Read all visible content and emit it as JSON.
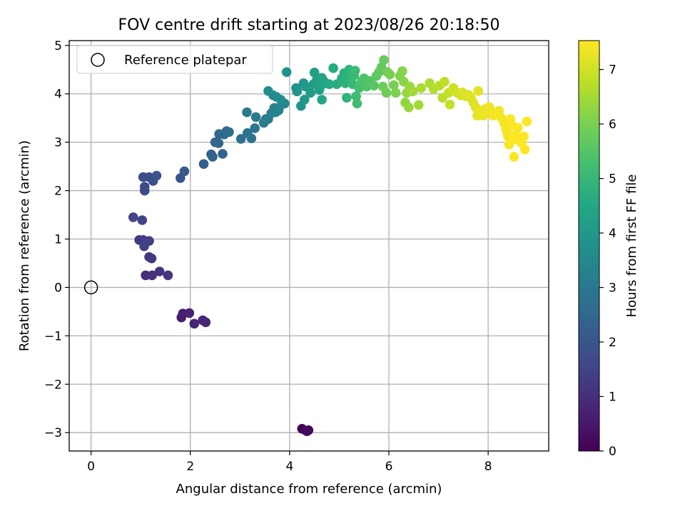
{
  "chart_data": {
    "type": "scatter",
    "title": "FOV centre drift starting at 2023/08/26 20:18:50",
    "xlabel": "Angular distance from reference (arcmin)",
    "ylabel": "Rotation from reference (arcmin)",
    "xlim": [
      -0.44,
      9.22
    ],
    "ylim": [
      -3.38,
      5.1
    ],
    "xticks": [
      0,
      2,
      4,
      6,
      8
    ],
    "xtick_labels": [
      "0",
      "2",
      "4",
      "6",
      "8"
    ],
    "yticks": [
      -3,
      -2,
      -1,
      0,
      1,
      2,
      3,
      4,
      5
    ],
    "ytick_labels": [
      "−3",
      "−2",
      "−1",
      "0",
      "1",
      "2",
      "3",
      "4",
      "5"
    ],
    "grid": true,
    "legend": {
      "placement": "top-left",
      "entries": [
        "Reference platepar"
      ]
    },
    "reference_point": {
      "x": 0,
      "y": 0,
      "marker": "open-circle",
      "label": "Reference platepar"
    },
    "colorbar": {
      "label": "Hours from first FF file",
      "colormap": "viridis",
      "range": [
        0,
        7.53
      ],
      "ticks": [
        0,
        1,
        2,
        3,
        4,
        5,
        6,
        7
      ],
      "tick_labels": [
        "0",
        "1",
        "2",
        "3",
        "4",
        "5",
        "6",
        "7"
      ]
    },
    "series": [
      {
        "points": [
          {
            "x": 4.25,
            "y": -2.92,
            "h": 0.05
          },
          {
            "x": 4.33,
            "y": -2.96,
            "h": 0.1
          },
          {
            "x": 4.38,
            "y": -2.95,
            "h": 0.15
          },
          {
            "x": 4.35,
            "y": -2.97,
            "h": 0.2
          },
          {
            "x": 1.82,
            "y": -0.62,
            "h": 0.6
          },
          {
            "x": 1.85,
            "y": -0.54,
            "h": 0.65
          },
          {
            "x": 1.98,
            "y": -0.53,
            "h": 0.7
          },
          {
            "x": 2.08,
            "y": -0.75,
            "h": 0.75
          },
          {
            "x": 2.25,
            "y": -0.68,
            "h": 0.8
          },
          {
            "x": 2.31,
            "y": -0.72,
            "h": 0.85
          },
          {
            "x": 1.1,
            "y": 0.25,
            "h": 1.0
          },
          {
            "x": 1.23,
            "y": 0.25,
            "h": 1.05
          },
          {
            "x": 1.38,
            "y": 0.33,
            "h": 1.1
          },
          {
            "x": 1.55,
            "y": 0.25,
            "h": 1.15
          },
          {
            "x": 1.17,
            "y": 0.63,
            "h": 1.2
          },
          {
            "x": 1.22,
            "y": 0.6,
            "h": 1.25
          },
          {
            "x": 0.97,
            "y": 0.98,
            "h": 1.3
          },
          {
            "x": 1.05,
            "y": 0.98,
            "h": 1.35
          },
          {
            "x": 1.17,
            "y": 0.96,
            "h": 1.4
          },
          {
            "x": 1.07,
            "y": 0.85,
            "h": 1.45
          },
          {
            "x": 0.85,
            "y": 1.45,
            "h": 1.5
          },
          {
            "x": 1.03,
            "y": 1.39,
            "h": 1.55
          },
          {
            "x": 1.08,
            "y": 2.0,
            "h": 1.65
          },
          {
            "x": 1.08,
            "y": 2.08,
            "h": 1.7
          },
          {
            "x": 1.05,
            "y": 2.28,
            "h": 1.75
          },
          {
            "x": 1.17,
            "y": 2.28,
            "h": 1.8
          },
          {
            "x": 1.25,
            "y": 2.2,
            "h": 1.85
          },
          {
            "x": 1.32,
            "y": 2.31,
            "h": 1.9
          },
          {
            "x": 1.8,
            "y": 2.26,
            "h": 2.0
          },
          {
            "x": 1.88,
            "y": 2.4,
            "h": 2.1
          },
          {
            "x": 2.27,
            "y": 2.55,
            "h": 2.2
          },
          {
            "x": 2.42,
            "y": 2.75,
            "h": 2.3
          },
          {
            "x": 2.45,
            "y": 2.7,
            "h": 2.35
          },
          {
            "x": 2.65,
            "y": 2.76,
            "h": 2.4
          },
          {
            "x": 2.5,
            "y": 3.0,
            "h": 2.45
          },
          {
            "x": 2.57,
            "y": 2.98,
            "h": 2.5
          },
          {
            "x": 2.58,
            "y": 3.17,
            "h": 2.55
          },
          {
            "x": 2.68,
            "y": 3.16,
            "h": 2.6
          },
          {
            "x": 2.73,
            "y": 3.23,
            "h": 2.65
          },
          {
            "x": 2.78,
            "y": 3.21,
            "h": 2.7
          },
          {
            "x": 3.02,
            "y": 3.07,
            "h": 2.8
          },
          {
            "x": 3.15,
            "y": 3.19,
            "h": 2.85
          },
          {
            "x": 3.23,
            "y": 3.08,
            "h": 2.9
          },
          {
            "x": 3.3,
            "y": 3.29,
            "h": 2.95
          },
          {
            "x": 3.14,
            "y": 3.62,
            "h": 3.0
          },
          {
            "x": 3.32,
            "y": 3.52,
            "h": 3.05
          },
          {
            "x": 3.48,
            "y": 3.4,
            "h": 3.1
          },
          {
            "x": 3.52,
            "y": 3.48,
            "h": 3.15
          },
          {
            "x": 3.57,
            "y": 3.48,
            "h": 3.2
          },
          {
            "x": 3.63,
            "y": 3.6,
            "h": 3.25
          },
          {
            "x": 3.69,
            "y": 3.71,
            "h": 3.3
          },
          {
            "x": 3.72,
            "y": 3.62,
            "h": 3.35
          },
          {
            "x": 3.78,
            "y": 3.66,
            "h": 3.4
          },
          {
            "x": 3.84,
            "y": 3.78,
            "h": 3.45
          },
          {
            "x": 3.9,
            "y": 3.8,
            "h": 3.5
          },
          {
            "x": 3.67,
            "y": 3.97,
            "h": 3.55
          },
          {
            "x": 3.73,
            "y": 3.94,
            "h": 3.6
          },
          {
            "x": 3.82,
            "y": 3.88,
            "h": 3.65
          },
          {
            "x": 3.57,
            "y": 4.06,
            "h": 3.7
          },
          {
            "x": 3.94,
            "y": 4.45,
            "h": 3.75
          },
          {
            "x": 4.13,
            "y": 4.12,
            "h": 3.8
          },
          {
            "x": 4.15,
            "y": 4.05,
            "h": 3.85
          },
          {
            "x": 4.23,
            "y": 3.75,
            "h": 3.9
          },
          {
            "x": 4.3,
            "y": 3.88,
            "h": 3.95
          },
          {
            "x": 4.28,
            "y": 4.22,
            "h": 4.0
          },
          {
            "x": 4.32,
            "y": 4.15,
            "h": 4.05
          },
          {
            "x": 4.42,
            "y": 4.02,
            "h": 4.1
          },
          {
            "x": 4.48,
            "y": 4.2,
            "h": 4.15
          },
          {
            "x": 4.5,
            "y": 4.44,
            "h": 4.2
          },
          {
            "x": 4.55,
            "y": 4.3,
            "h": 4.25
          },
          {
            "x": 4.6,
            "y": 4.08,
            "h": 4.3
          },
          {
            "x": 4.65,
            "y": 4.33,
            "h": 4.35
          },
          {
            "x": 4.67,
            "y": 4.2,
            "h": 4.4
          },
          {
            "x": 4.7,
            "y": 4.25,
            "h": 4.45
          },
          {
            "x": 4.65,
            "y": 3.88,
            "h": 4.5
          },
          {
            "x": 4.8,
            "y": 4.2,
            "h": 4.55
          },
          {
            "x": 4.88,
            "y": 4.53,
            "h": 4.6
          },
          {
            "x": 4.95,
            "y": 4.2,
            "h": 4.65
          },
          {
            "x": 5.05,
            "y": 4.32,
            "h": 4.7
          },
          {
            "x": 5.1,
            "y": 4.43,
            "h": 4.75
          },
          {
            "x": 5.12,
            "y": 4.22,
            "h": 4.8
          },
          {
            "x": 5.15,
            "y": 3.92,
            "h": 4.85
          },
          {
            "x": 5.2,
            "y": 4.5,
            "h": 4.9
          },
          {
            "x": 5.23,
            "y": 4.33,
            "h": 4.95
          },
          {
            "x": 5.27,
            "y": 4.2,
            "h": 5.0
          },
          {
            "x": 5.3,
            "y": 4.38,
            "h": 5.05
          },
          {
            "x": 5.32,
            "y": 4.48,
            "h": 5.1
          },
          {
            "x": 5.34,
            "y": 3.95,
            "h": 5.15
          },
          {
            "x": 5.36,
            "y": 3.8,
            "h": 5.2
          },
          {
            "x": 5.4,
            "y": 4.12,
            "h": 5.25
          },
          {
            "x": 5.42,
            "y": 4.2,
            "h": 5.3
          },
          {
            "x": 5.46,
            "y": 4.27,
            "h": 5.35
          },
          {
            "x": 5.5,
            "y": 4.32,
            "h": 5.4
          },
          {
            "x": 5.55,
            "y": 4.15,
            "h": 5.45
          },
          {
            "x": 5.62,
            "y": 4.27,
            "h": 5.5
          },
          {
            "x": 5.7,
            "y": 4.17,
            "h": 5.55
          },
          {
            "x": 5.75,
            "y": 4.37,
            "h": 5.6
          },
          {
            "x": 5.8,
            "y": 4.45,
            "h": 5.65
          },
          {
            "x": 5.85,
            "y": 4.55,
            "h": 5.7
          },
          {
            "x": 5.9,
            "y": 4.7,
            "h": 5.75
          },
          {
            "x": 5.88,
            "y": 4.15,
            "h": 5.8
          },
          {
            "x": 5.95,
            "y": 4.02,
            "h": 5.85
          },
          {
            "x": 5.97,
            "y": 4.45,
            "h": 5.9
          },
          {
            "x": 6.02,
            "y": 4.4,
            "h": 5.95
          },
          {
            "x": 6.1,
            "y": 4.18,
            "h": 6.0
          },
          {
            "x": 6.14,
            "y": 4.02,
            "h": 6.05
          },
          {
            "x": 6.22,
            "y": 4.37,
            "h": 6.1
          },
          {
            "x": 6.27,
            "y": 4.47,
            "h": 6.15
          },
          {
            "x": 6.3,
            "y": 4.25,
            "h": 6.2
          },
          {
            "x": 6.33,
            "y": 3.82,
            "h": 6.25
          },
          {
            "x": 6.36,
            "y": 4.02,
            "h": 6.3
          },
          {
            "x": 6.4,
            "y": 3.72,
            "h": 6.35
          },
          {
            "x": 6.42,
            "y": 4.15,
            "h": 6.4
          },
          {
            "x": 6.48,
            "y": 4.05,
            "h": 6.45
          },
          {
            "x": 6.6,
            "y": 3.77,
            "h": 6.5
          },
          {
            "x": 6.65,
            "y": 4.12,
            "h": 6.55
          },
          {
            "x": 6.82,
            "y": 4.22,
            "h": 6.6
          },
          {
            "x": 6.9,
            "y": 4.1,
            "h": 6.65
          },
          {
            "x": 7.02,
            "y": 4.17,
            "h": 6.7
          },
          {
            "x": 7.08,
            "y": 3.92,
            "h": 6.75
          },
          {
            "x": 7.12,
            "y": 4.25,
            "h": 6.8
          },
          {
            "x": 7.2,
            "y": 4.02,
            "h": 6.85
          },
          {
            "x": 7.23,
            "y": 3.78,
            "h": 6.9
          },
          {
            "x": 7.3,
            "y": 4.12,
            "h": 6.95
          },
          {
            "x": 7.38,
            "y": 4.02,
            "h": 7.0
          },
          {
            "x": 7.45,
            "y": 3.97,
            "h": 7.05
          },
          {
            "x": 7.48,
            "y": 4.03,
            "h": 7.1
          },
          {
            "x": 7.55,
            "y": 3.95,
            "h": 7.12
          },
          {
            "x": 7.6,
            "y": 3.98,
            "h": 7.14
          },
          {
            "x": 7.65,
            "y": 3.92,
            "h": 7.16
          },
          {
            "x": 7.7,
            "y": 3.82,
            "h": 7.18
          },
          {
            "x": 7.75,
            "y": 3.72,
            "h": 7.2
          },
          {
            "x": 7.78,
            "y": 3.55,
            "h": 7.22
          },
          {
            "x": 7.8,
            "y": 4.06,
            "h": 7.24
          },
          {
            "x": 7.83,
            "y": 3.65,
            "h": 7.26
          },
          {
            "x": 7.87,
            "y": 3.62,
            "h": 7.28
          },
          {
            "x": 7.9,
            "y": 3.55,
            "h": 7.3
          },
          {
            "x": 7.93,
            "y": 3.68,
            "h": 7.32
          },
          {
            "x": 7.97,
            "y": 3.6,
            "h": 7.34
          },
          {
            "x": 8.02,
            "y": 3.73,
            "h": 7.36
          },
          {
            "x": 8.05,
            "y": 3.65,
            "h": 7.38
          },
          {
            "x": 8.1,
            "y": 3.55,
            "h": 7.4
          },
          {
            "x": 8.18,
            "y": 3.58,
            "h": 7.41
          },
          {
            "x": 8.22,
            "y": 3.65,
            "h": 7.42
          },
          {
            "x": 8.27,
            "y": 3.5,
            "h": 7.43
          },
          {
            "x": 8.32,
            "y": 3.4,
            "h": 7.44
          },
          {
            "x": 8.35,
            "y": 3.3,
            "h": 7.45
          },
          {
            "x": 8.38,
            "y": 3.2,
            "h": 7.46
          },
          {
            "x": 8.4,
            "y": 3.12,
            "h": 7.47
          },
          {
            "x": 8.42,
            "y": 2.95,
            "h": 7.48
          },
          {
            "x": 8.45,
            "y": 3.48,
            "h": 7.49
          },
          {
            "x": 8.48,
            "y": 3.35,
            "h": 7.5
          },
          {
            "x": 8.5,
            "y": 3.05,
            "h": 7.5
          },
          {
            "x": 8.55,
            "y": 3.15,
            "h": 7.51
          },
          {
            "x": 8.58,
            "y": 3.05,
            "h": 7.51
          },
          {
            "x": 8.6,
            "y": 3.3,
            "h": 7.52
          },
          {
            "x": 8.65,
            "y": 3.02,
            "h": 7.52
          },
          {
            "x": 8.68,
            "y": 2.98,
            "h": 7.52
          },
          {
            "x": 8.72,
            "y": 3.12,
            "h": 7.53
          },
          {
            "x": 8.74,
            "y": 2.85,
            "h": 7.53
          },
          {
            "x": 8.78,
            "y": 3.43,
            "h": 7.53
          },
          {
            "x": 8.52,
            "y": 2.7,
            "h": 7.53
          }
        ]
      }
    ]
  }
}
